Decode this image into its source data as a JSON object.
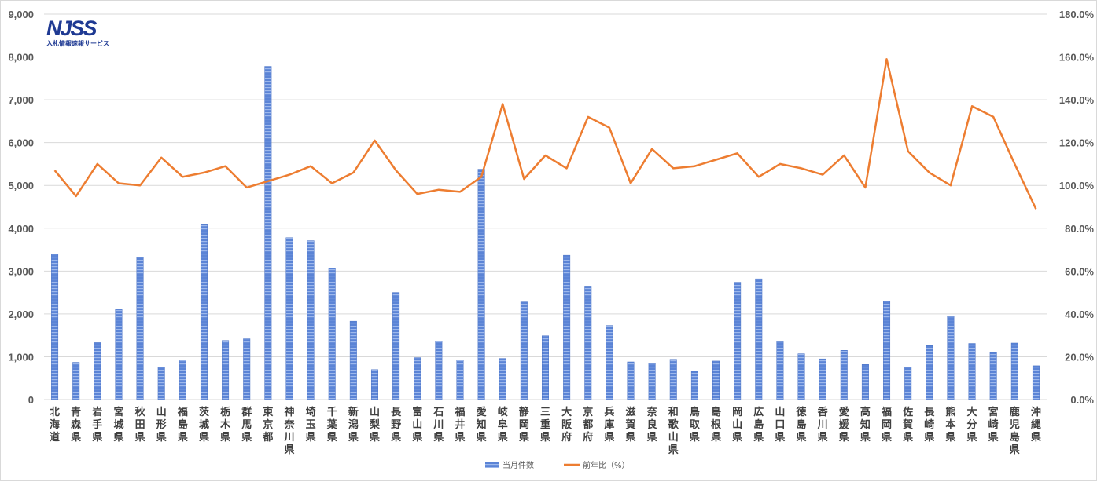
{
  "logo": {
    "mark": "NJSS",
    "subtitle": "入札情報速報サービス"
  },
  "colors": {
    "bar": "#5b84d6",
    "bar_stripe": "#9db8ec",
    "line": "#ed7d31",
    "grid": "#d9d9d9"
  },
  "chart_data": {
    "type": "bar",
    "title": "",
    "xlabel": "",
    "ylabel": "",
    "y_ticks": [
      "0",
      "1,000",
      "2,000",
      "3,000",
      "4,000",
      "5,000",
      "6,000",
      "7,000",
      "8,000",
      "9,000"
    ],
    "y2_ticks": [
      "0.0%",
      "20.0%",
      "40.0%",
      "60.0%",
      "80.0%",
      "100.0%",
      "120.0%",
      "140.0%",
      "160.0%",
      "180.0%"
    ],
    "ylim": [
      0,
      9000
    ],
    "y2lim": [
      0,
      180
    ],
    "grid": true,
    "legend_position": "bottom",
    "categories": [
      "北海道",
      "青森県",
      "岩手県",
      "宮城県",
      "秋田県",
      "山形県",
      "福島県",
      "茨城県",
      "栃木県",
      "群馬県",
      "東京都",
      "神奈川県",
      "埼玉県",
      "千葉県",
      "新潟県",
      "山梨県",
      "長野県",
      "富山県",
      "石川県",
      "福井県",
      "愛知県",
      "岐阜県",
      "静岡県",
      "三重県",
      "大阪府",
      "京都府",
      "兵庫県",
      "滋賀県",
      "奈良県",
      "和歌山県",
      "鳥取県",
      "島根県",
      "岡山県",
      "広島県",
      "山口県",
      "徳島県",
      "香川県",
      "愛媛県",
      "高知県",
      "福岡県",
      "佐賀県",
      "長崎県",
      "熊本県",
      "大分県",
      "宮崎県",
      "鹿児島県",
      "沖縄県"
    ],
    "series": [
      {
        "name": "当月件数",
        "type": "bar",
        "axis": "left",
        "values": [
          3400,
          870,
          1330,
          2120,
          3330,
          760,
          920,
          4100,
          1380,
          1420,
          7780,
          3780,
          3710,
          3070,
          1830,
          700,
          2500,
          980,
          1370,
          930,
          5380,
          960,
          2280,
          1490,
          3370,
          2650,
          1730,
          880,
          840,
          940,
          660,
          900,
          2740,
          2820,
          1350,
          1070,
          950,
          1150,
          820,
          2300,
          760,
          1260,
          1940,
          1310,
          1100,
          1320,
          790
        ]
      },
      {
        "name": "前年比（%）",
        "type": "line",
        "axis": "right",
        "values": [
          107,
          95,
          110,
          101,
          100,
          113,
          104,
          106,
          109,
          99,
          102,
          105,
          109,
          101,
          106,
          121,
          107,
          96,
          98,
          97,
          104,
          138,
          103,
          114,
          108,
          132,
          127,
          101,
          117,
          108,
          109,
          112,
          115,
          104,
          110,
          108,
          105,
          114,
          99,
          159,
          116,
          106,
          100,
          137,
          132,
          110,
          89
        ]
      }
    ]
  }
}
